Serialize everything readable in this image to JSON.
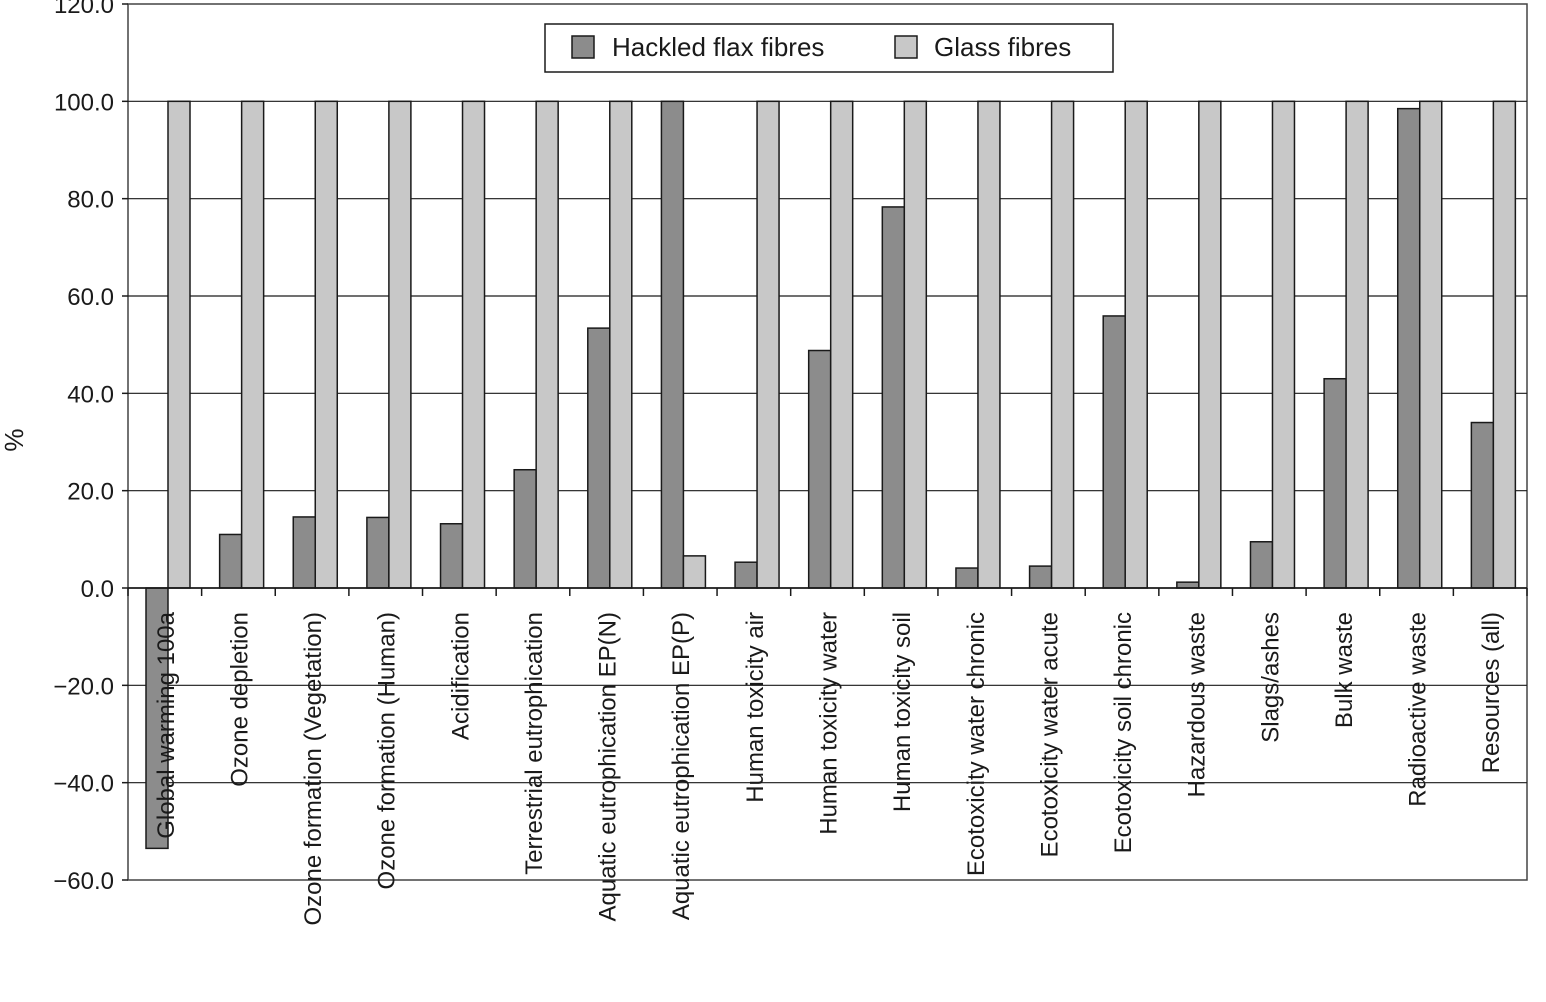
{
  "chart_data": {
    "type": "bar",
    "title": "",
    "xlabel": "",
    "ylabel": "%",
    "ylim": [
      -60,
      120
    ],
    "yticks": [
      "−60.0",
      "−40.0",
      "−20.0",
      "0.0",
      "20.0",
      "40.0",
      "60.0",
      "80.0",
      "100.0",
      "120.0"
    ],
    "ytick_values": [
      -60,
      -40,
      -20,
      0,
      20,
      40,
      60,
      80,
      100,
      120
    ],
    "grid": true,
    "legend_position": "top-center",
    "categories": [
      "Global warming 100a",
      "Ozone depletion",
      "Ozone formation (Vegetation)",
      "Ozone formation (Human)",
      "Acidification",
      "Terrestrial eutrophication",
      "Aquatic eutrophication EP(N)",
      "Aquatic eutrophication EP(P)",
      "Human toxicity air",
      "Human toxicity water",
      "Human toxicity soil",
      "Ecotoxicity water chronic",
      "Ecotoxicity water acute",
      "Ecotoxicity soil chronic",
      "Hazardous waste",
      "Slags/ashes",
      "Bulk waste",
      "Radioactive waste",
      "Resources (all)"
    ],
    "series": [
      {
        "name": "Hackled flax fibres",
        "color": "#8c8c8c",
        "values": [
          -53.5,
          11,
          14.6,
          14.5,
          13.2,
          24.3,
          53.4,
          100,
          5.3,
          48.8,
          78.3,
          4.1,
          4.5,
          55.9,
          1.2,
          9.5,
          43,
          98.5,
          34
        ]
      },
      {
        "name": "Glass fibres",
        "color": "#c8c8c8",
        "values": [
          100,
          100,
          100,
          100,
          100,
          100,
          100,
          6.6,
          100,
          100,
          100,
          100,
          100,
          100,
          100,
          100,
          100,
          100,
          100
        ]
      }
    ]
  }
}
